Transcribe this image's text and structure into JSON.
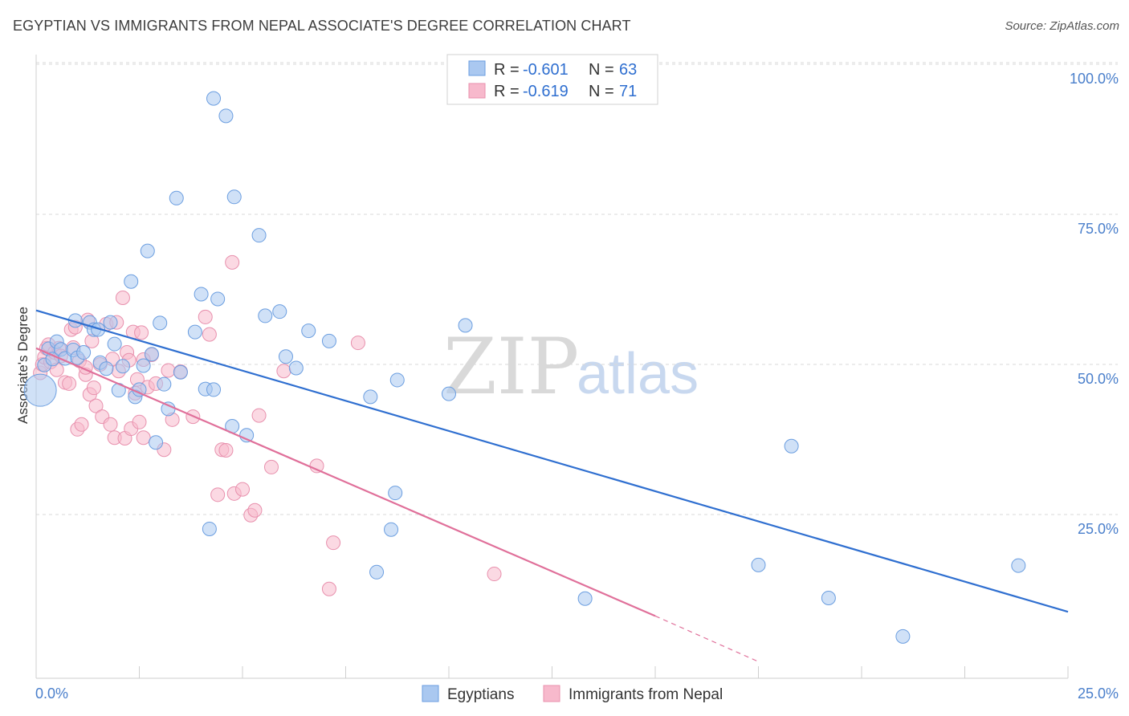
{
  "title": "EGYPTIAN VS IMMIGRANTS FROM NEPAL ASSOCIATE'S DEGREE CORRELATION CHART",
  "source": "Source: ZipAtlas.com",
  "watermark": {
    "zip": "ZIP",
    "atlas": "atlas"
  },
  "legend_top": [
    {
      "r_label": "R =",
      "r_value": "-0.601",
      "n_label": "N =",
      "n_value": "63"
    },
    {
      "r_label": "R =",
      "r_value": "-0.619",
      "n_label": "N =",
      "n_value": "71"
    }
  ],
  "colors": {
    "blue_fill": "#aac8f0",
    "blue_stroke": "#6b9ee0",
    "blue_line": "#2f6fd0",
    "pink_fill": "#f7b9cc",
    "pink_stroke": "#e890ad",
    "pink_line": "#e0709a",
    "grid": "#d9d9d9",
    "axis_text": "#4a7fcb"
  },
  "chart_data": {
    "type": "scatter",
    "title": "EGYPTIAN VS IMMIGRANTS FROM NEPAL ASSOCIATE'S DEGREE CORRELATION CHART",
    "xlabel": "",
    "ylabel": "Associate's Degree",
    "x_tick_labels": [
      "0.0%",
      "25.0%"
    ],
    "y_tick_labels": [
      "100.0%",
      "75.0%",
      "50.0%",
      "25.0%"
    ],
    "y_ticks": [
      100,
      75,
      50,
      25
    ],
    "xlim": [
      0,
      25
    ],
    "ylim": [
      0,
      102
    ],
    "grid": true,
    "legend_position": "bottom-center",
    "series": [
      {
        "name": "Egyptians",
        "color": "#aac8f0",
        "trend": {
          "x": [
            0,
            25
          ],
          "y": [
            59.0,
            8.8
          ]
        },
        "points": [
          [
            0.1,
            45.7
          ],
          [
            0.2,
            49.9
          ],
          [
            0.3,
            52.6
          ],
          [
            0.4,
            50.9
          ],
          [
            0.5,
            53.8
          ],
          [
            0.6,
            52.5
          ],
          [
            0.7,
            51.0
          ],
          [
            0.9,
            52.4
          ],
          [
            0.95,
            57.3
          ],
          [
            1.0,
            51.1
          ],
          [
            1.15,
            52.0
          ],
          [
            1.3,
            57.0
          ],
          [
            1.4,
            55.8
          ],
          [
            1.5,
            55.8
          ],
          [
            1.55,
            50.3
          ],
          [
            1.7,
            49.3
          ],
          [
            1.8,
            57.0
          ],
          [
            1.9,
            53.4
          ],
          [
            2.0,
            45.7
          ],
          [
            2.1,
            49.7
          ],
          [
            2.3,
            63.8
          ],
          [
            2.4,
            44.6
          ],
          [
            2.5,
            45.8
          ],
          [
            2.6,
            49.8
          ],
          [
            2.7,
            68.9
          ],
          [
            2.8,
            51.7
          ],
          [
            2.9,
            37.0
          ],
          [
            3.0,
            56.9
          ],
          [
            3.1,
            46.7
          ],
          [
            3.2,
            42.6
          ],
          [
            3.4,
            77.7
          ],
          [
            3.5,
            48.7
          ],
          [
            3.85,
            55.4
          ],
          [
            4.0,
            61.7
          ],
          [
            4.1,
            45.9
          ],
          [
            4.2,
            22.6
          ],
          [
            4.3,
            45.8
          ],
          [
            4.4,
            60.9
          ],
          [
            4.3,
            94.3
          ],
          [
            4.6,
            91.4
          ],
          [
            4.75,
            39.7
          ],
          [
            4.8,
            77.9
          ],
          [
            5.1,
            38.2
          ],
          [
            5.4,
            71.5
          ],
          [
            5.55,
            58.1
          ],
          [
            5.9,
            58.8
          ],
          [
            6.05,
            51.3
          ],
          [
            6.3,
            49.4
          ],
          [
            6.6,
            55.6
          ],
          [
            7.1,
            53.9
          ],
          [
            8.1,
            44.6
          ],
          [
            8.75,
            47.4
          ],
          [
            8.7,
            28.6
          ],
          [
            8.6,
            22.5
          ],
          [
            8.25,
            15.4
          ],
          [
            10.0,
            45.1
          ],
          [
            10.4,
            56.5
          ],
          [
            13.3,
            11.0
          ],
          [
            17.5,
            16.6
          ],
          [
            18.3,
            36.4
          ],
          [
            19.2,
            11.1
          ],
          [
            21.0,
            4.7
          ],
          [
            23.8,
            16.5
          ]
        ]
      },
      {
        "name": "Immigrants from Nepal",
        "color": "#f7b9cc",
        "trend": {
          "x": [
            0,
            15.0
          ],
          "y": [
            52.7,
            8.1
          ]
        },
        "trend_dashed": {
          "x": [
            15.0,
            17.5
          ],
          "y": [
            8.1,
            0.5
          ]
        },
        "points": [
          [
            0.1,
            48.6
          ],
          [
            0.15,
            50.0
          ],
          [
            0.2,
            51.2
          ],
          [
            0.25,
            52.7
          ],
          [
            0.3,
            53.3
          ],
          [
            0.35,
            50.4
          ],
          [
            0.45,
            52.0
          ],
          [
            0.5,
            49.1
          ],
          [
            0.55,
            52.7
          ],
          [
            0.6,
            51.4
          ],
          [
            0.7,
            47.0
          ],
          [
            0.8,
            46.8
          ],
          [
            0.85,
            55.8
          ],
          [
            0.9,
            52.8
          ],
          [
            0.95,
            56.2
          ],
          [
            1.0,
            39.2
          ],
          [
            1.05,
            50.6
          ],
          [
            1.1,
            40.0
          ],
          [
            1.2,
            48.3
          ],
          [
            1.25,
            57.4
          ],
          [
            1.3,
            45.0
          ],
          [
            1.35,
            53.9
          ],
          [
            1.4,
            46.1
          ],
          [
            1.45,
            43.1
          ],
          [
            1.55,
            50.0
          ],
          [
            1.6,
            41.3
          ],
          [
            1.7,
            56.7
          ],
          [
            1.8,
            40.0
          ],
          [
            1.85,
            50.9
          ],
          [
            1.9,
            37.8
          ],
          [
            1.95,
            57.0
          ],
          [
            2.0,
            48.9
          ],
          [
            2.1,
            61.1
          ],
          [
            2.15,
            37.7
          ],
          [
            2.2,
            52.0
          ],
          [
            2.25,
            50.7
          ],
          [
            2.3,
            39.3
          ],
          [
            2.35,
            55.4
          ],
          [
            2.4,
            45.2
          ],
          [
            2.45,
            47.5
          ],
          [
            2.5,
            40.4
          ],
          [
            2.55,
            55.3
          ],
          [
            2.6,
            37.8
          ],
          [
            2.7,
            46.2
          ],
          [
            2.8,
            51.6
          ],
          [
            2.9,
            46.8
          ],
          [
            3.1,
            35.8
          ],
          [
            3.2,
            49.0
          ],
          [
            3.3,
            40.8
          ],
          [
            3.5,
            48.8
          ],
          [
            3.8,
            41.3
          ],
          [
            4.1,
            57.9
          ],
          [
            4.2,
            55.0
          ],
          [
            4.4,
            28.3
          ],
          [
            4.5,
            35.8
          ],
          [
            4.6,
            35.7
          ],
          [
            4.75,
            67.0
          ],
          [
            4.8,
            28.5
          ],
          [
            5.0,
            29.2
          ],
          [
            5.2,
            24.9
          ],
          [
            5.3,
            25.7
          ],
          [
            5.4,
            41.5
          ],
          [
            5.7,
            32.9
          ],
          [
            6.0,
            48.9
          ],
          [
            6.8,
            33.1
          ],
          [
            7.2,
            20.3
          ],
          [
            7.1,
            12.6
          ],
          [
            7.8,
            53.6
          ],
          [
            11.1,
            15.1
          ],
          [
            2.6,
            50.8
          ],
          [
            1.2,
            49.5
          ]
        ]
      }
    ]
  },
  "bottom_legend": [
    {
      "label": "Egyptians"
    },
    {
      "label": "Immigrants from Nepal"
    }
  ]
}
